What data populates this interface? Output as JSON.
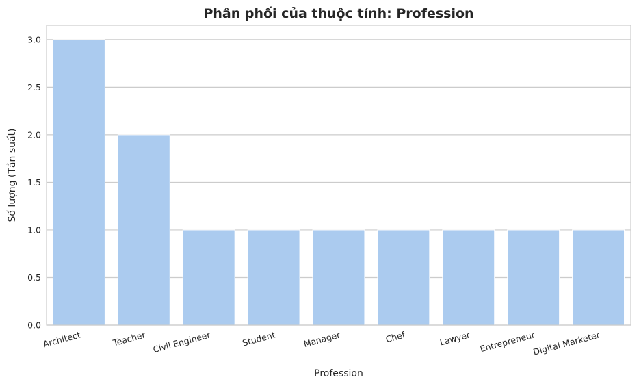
{
  "chart_data": {
    "type": "bar",
    "title": "Phân phối của thuộc tính: Profession",
    "xlabel": "Profession",
    "ylabel": "Số lượng (Tần suất)",
    "categories": [
      "Architect",
      "Teacher",
      "Civil Engineer",
      "Student",
      "Manager",
      "Chef",
      "Lawyer",
      "Entrepreneur",
      "Digital Marketer"
    ],
    "values": [
      3,
      2,
      1,
      1,
      1,
      1,
      1,
      1,
      1
    ],
    "ylim": [
      0,
      3.15
    ],
    "yticks": [
      "0.0",
      "0.5",
      "1.0",
      "1.5",
      "2.0",
      "2.5",
      "3.0"
    ],
    "grid": true,
    "bar_color": "#abcbef"
  }
}
